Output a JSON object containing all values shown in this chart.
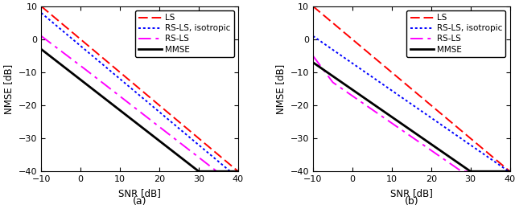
{
  "snr_range": [
    -10,
    40
  ],
  "ylim": [
    -40,
    10
  ],
  "yticks": [
    -40,
    -30,
    -20,
    -10,
    0,
    10
  ],
  "xticks": [
    -10,
    0,
    10,
    20,
    30,
    40
  ],
  "xlabel": "SNR [dB]",
  "ylabel": "NMSE [dB]",
  "subplot_labels": [
    "(a)",
    "(b)"
  ],
  "legend_labels": [
    "LS",
    "RS-LS, isotropic",
    "RS-LS",
    "MMSE"
  ],
  "subplot_a": {
    "LS": {
      "snr_at_10": -10,
      "slope": -1.0
    },
    "RS_LS_iso": {
      "val_at_m10": 8.0,
      "slope": -1.0
    },
    "MMSE": {
      "val_at_m10": -3.0,
      "slope": -0.925
    },
    "RS_LS": {
      "val_at_m10": 1.0,
      "merge_snr": 0,
      "steep_slope": -0.9,
      "mmse_val_at_m10": -3.0,
      "mmse_slope": -0.925
    }
  },
  "subplot_b": {
    "LS": {
      "snr_at_10": -10,
      "slope": -1.0
    },
    "RS_LS_iso": {
      "val_at_m10": 1.0,
      "slope": -0.825
    },
    "MMSE": {
      "val_at_m10": -7.0,
      "slope": -0.825
    },
    "RS_LS": {
      "val_at_m10": -5.0,
      "merge_snr": -5,
      "steep_slope": -1.6,
      "mmse_val_at_m10": -7.0,
      "mmse_slope": -0.825
    }
  },
  "colors": {
    "LS": "#ff0000",
    "RS_LS_iso": "#0000ff",
    "RS_LS": "#ff00ff",
    "MMSE": "#000000"
  },
  "linewidths": {
    "LS": 1.4,
    "RS_LS_iso": 1.4,
    "RS_LS": 1.4,
    "MMSE": 2.0
  }
}
